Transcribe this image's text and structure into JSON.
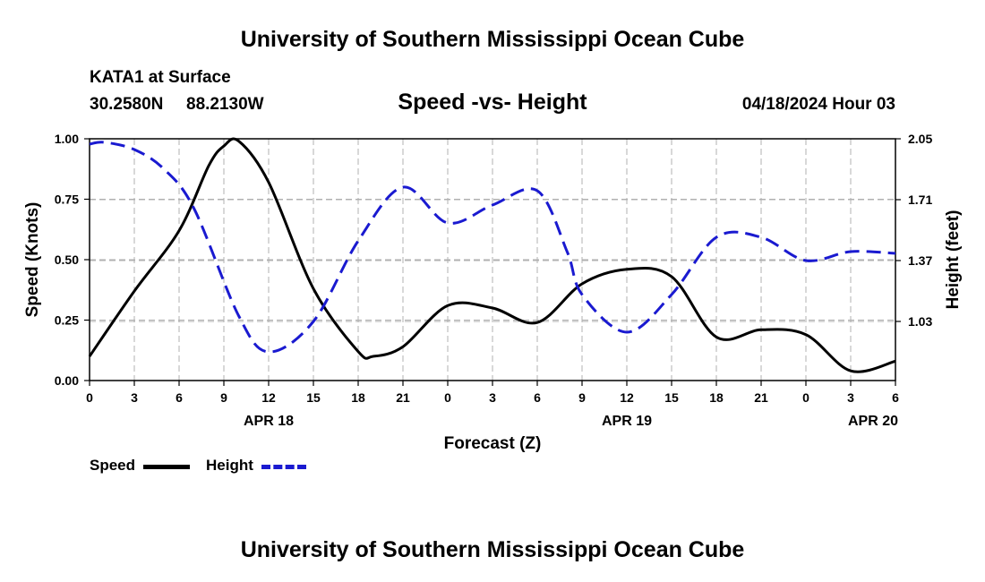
{
  "title_top": "University of Southern Mississippi Ocean Cube",
  "title_bottom": "University of Southern Mississippi Ocean Cube",
  "station": "KATA1 at Surface",
  "latitude": "30.2580N",
  "longitude": "88.2130W",
  "subtitle": "Speed -vs- Height",
  "datetime": "04/18/2024 Hour 03",
  "colors": {
    "speed": "#000000",
    "height": "#1a1ad0",
    "grid": "#b0b0b0"
  },
  "chart_data": {
    "type": "line",
    "title": "Speed -vs- Height",
    "xlabel": "Forecast (Z)",
    "ylabel": "Speed (Knots)",
    "y2label": "Height (feet)",
    "x_range": [
      0,
      54
    ],
    "ylim": [
      0,
      1.0
    ],
    "y2lim": [
      0.7,
      2.05
    ],
    "x_ticks": [
      0,
      3,
      6,
      9,
      12,
      15,
      18,
      21,
      24,
      27,
      30,
      33,
      36,
      39,
      42,
      45,
      48,
      51,
      54
    ],
    "x_tick_labels": [
      "0",
      "3",
      "6",
      "9",
      "12",
      "15",
      "18",
      "21",
      "0",
      "3",
      "6",
      "9",
      "12",
      "15",
      "18",
      "21",
      "0",
      "3",
      "6"
    ],
    "y_ticks": [
      0,
      0.25,
      0.5,
      0.75,
      1.0
    ],
    "y_tick_labels": [
      "0.00",
      "0.25",
      "0.50",
      "0.75",
      "1.00"
    ],
    "y2_ticks": [
      1.03,
      1.37,
      1.71,
      2.05
    ],
    "y2_tick_labels": [
      "1.03",
      "1.37",
      "1.71",
      "2.05"
    ],
    "date_labels": [
      {
        "x": 12,
        "label": "APR 18"
      },
      {
        "x": 36,
        "label": "APR 19"
      },
      {
        "x": 52.5,
        "label": "APR 20"
      }
    ],
    "grid": true,
    "legend_position": "bottom-left",
    "series": [
      {
        "name": "Speed",
        "axis": "left",
        "style": "solid",
        "x": [
          0,
          3,
          6,
          8,
          9,
          10,
          12,
          15,
          18,
          19,
          21,
          24,
          27,
          30,
          33,
          36,
          39,
          42,
          45,
          48,
          51,
          54
        ],
        "values": [
          0.1,
          0.37,
          0.62,
          0.89,
          0.97,
          0.99,
          0.82,
          0.38,
          0.12,
          0.1,
          0.14,
          0.31,
          0.3,
          0.24,
          0.4,
          0.46,
          0.43,
          0.18,
          0.21,
          0.19,
          0.04,
          0.08
        ]
      },
      {
        "name": "Height",
        "axis": "right",
        "style": "dashed",
        "x": [
          0,
          1,
          3,
          5,
          7,
          10,
          12,
          15,
          18,
          21,
          24,
          27,
          30,
          32,
          33,
          36,
          39,
          42,
          45,
          48,
          51,
          54
        ],
        "values": [
          2.02,
          2.03,
          1.99,
          1.88,
          1.66,
          1.06,
          0.86,
          1.03,
          1.48,
          1.78,
          1.58,
          1.68,
          1.76,
          1.42,
          1.18,
          0.97,
          1.18,
          1.5,
          1.5,
          1.37,
          1.42,
          1.41
        ]
      }
    ]
  }
}
